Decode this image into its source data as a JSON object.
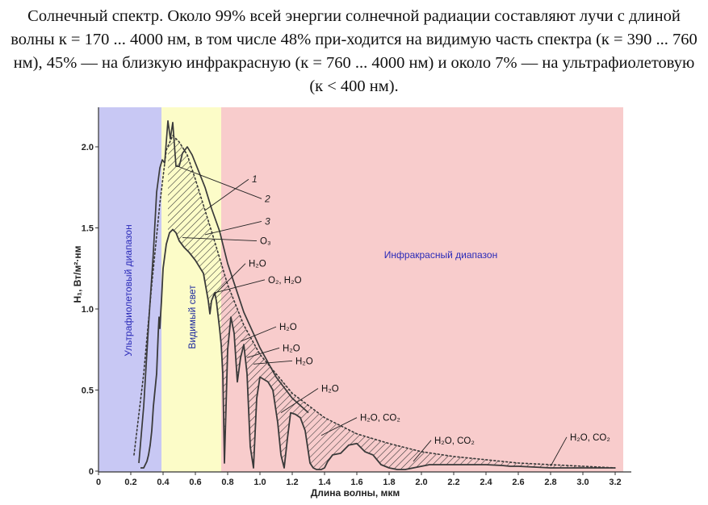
{
  "caption": "Солнечный спектр. Около 99% всей энергии солнечной радиации составляют лучи с длиной волны к = 170 ... 4000 нм, в том числе 48% при-ходится на видимую часть спектра (к = 390 ... 760 нм), 45% — на близкую инфракрасную (к = 760 ... 4000 нм) и около 7% — на ультрафиолетовую (к < 400 нм).",
  "colors": {
    "uv": "#c8c8f4",
    "visible": "#fcfcc8",
    "infrared": "#f8cccc",
    "uv_text": "#2a2ab8",
    "visible_text": "#1e2a9e",
    "ir_text": "#2a2ab8",
    "curve": "#3a3a3a"
  },
  "chart_data": {
    "type": "line",
    "xlabel": "Длина волны, мкм",
    "ylabel": "H₁, Вт/м²·нм",
    "xlim": [
      0,
      3.25
    ],
    "ylim": [
      0,
      2.2
    ],
    "xticks": [
      "0",
      "0.2",
      "0.4",
      "0.6",
      "0.8",
      "1.0",
      "1.2",
      "1.4",
      "1.6",
      "1.8",
      "2.0",
      "2.2",
      "2.4",
      "2.6",
      "2.8",
      "3.0",
      "3.2"
    ],
    "yticks": [
      {
        "value": 0,
        "label": "0"
      },
      {
        "value": 0.5,
        "label": "0.5"
      },
      {
        "value": 1.0,
        "label": "1.0"
      },
      {
        "value": 1.5,
        "label": "1.5"
      },
      {
        "value": 2.0,
        "label": "2.0"
      }
    ],
    "regions": [
      {
        "name": "Ультрафиолетовый диапазон",
        "from": 0,
        "to": 0.39,
        "color_key": "uv"
      },
      {
        "name": "Видимый свет",
        "from": 0.39,
        "to": 0.76,
        "color_key": "visible"
      },
      {
        "name": "Инфракрасный диапазон",
        "from": 0.76,
        "to": 3.25,
        "color_key": "infrared"
      }
    ],
    "series": [
      {
        "name": "1",
        "style": "dotted",
        "x": [
          0.22,
          0.28,
          0.33,
          0.38,
          0.42,
          0.46,
          0.5,
          0.55,
          0.6,
          0.7,
          0.8,
          0.9,
          1.0,
          1.2,
          1.4,
          1.6,
          1.8,
          2.0,
          2.2,
          2.4,
          2.6,
          2.8,
          3.0,
          3.2
        ],
        "y": [
          0.1,
          0.6,
          1.15,
          1.65,
          1.98,
          2.07,
          2.03,
          1.95,
          1.8,
          1.48,
          1.15,
          0.9,
          0.72,
          0.48,
          0.33,
          0.23,
          0.17,
          0.12,
          0.09,
          0.07,
          0.05,
          0.04,
          0.03,
          0.02
        ]
      },
      {
        "name": "2",
        "style": "solid",
        "x": [
          0.25,
          0.28,
          0.31,
          0.34,
          0.36,
          0.38,
          0.395,
          0.41,
          0.43,
          0.445,
          0.46,
          0.48,
          0.5,
          0.52,
          0.55,
          0.58,
          0.62,
          0.66,
          0.7,
          0.75,
          0.8,
          0.9,
          1.0,
          1.1,
          1.2,
          1.3
        ],
        "y": [
          0.05,
          0.4,
          0.9,
          1.35,
          1.72,
          1.87,
          1.92,
          1.9,
          2.16,
          2.05,
          2.15,
          1.88,
          1.88,
          1.96,
          2.0,
          1.95,
          1.85,
          1.75,
          1.62,
          1.48,
          1.28,
          0.98,
          0.76,
          0.58,
          0.45,
          0.36
        ]
      },
      {
        "name": "3",
        "style": "solid",
        "x": [
          0.26,
          0.28,
          0.3,
          0.31,
          0.32,
          0.33,
          0.34,
          0.36,
          0.37,
          0.375,
          0.38,
          0.39,
          0.4,
          0.42,
          0.44,
          0.46,
          0.48,
          0.5,
          0.53,
          0.56,
          0.6,
          0.65,
          0.68,
          0.69,
          0.7,
          0.72,
          0.73,
          0.75,
          0.76,
          0.77,
          0.78,
          0.8,
          0.82,
          0.84,
          0.86,
          0.88,
          0.9,
          0.92,
          0.94,
          0.96,
          0.98,
          1.0,
          1.05,
          1.08,
          1.11,
          1.13,
          1.15,
          1.17,
          1.19,
          1.22,
          1.25,
          1.28,
          1.31,
          1.33,
          1.35,
          1.38,
          1.4,
          1.42,
          1.45,
          1.5,
          1.55,
          1.6,
          1.65,
          1.7,
          1.75,
          1.8,
          1.85,
          1.9,
          1.95,
          2.0,
          2.05,
          2.1,
          2.2,
          2.3,
          2.4,
          2.5,
          2.55,
          2.6,
          2.7,
          2.8,
          2.9,
          3.0,
          3.1,
          3.2
        ],
        "y": [
          0.02,
          0.02,
          0.06,
          0.1,
          0.16,
          0.25,
          0.4,
          0.6,
          0.85,
          0.95,
          0.88,
          1.05,
          1.25,
          1.4,
          1.47,
          1.49,
          1.47,
          1.42,
          1.38,
          1.35,
          1.3,
          1.22,
          1.05,
          0.97,
          1.05,
          1.1,
          1.05,
          0.88,
          0.78,
          0.6,
          0.05,
          0.75,
          0.95,
          0.85,
          0.55,
          0.7,
          0.78,
          0.6,
          0.15,
          0.02,
          0.45,
          0.58,
          0.55,
          0.5,
          0.3,
          0.1,
          0.02,
          0.2,
          0.36,
          0.35,
          0.33,
          0.25,
          0.05,
          0.02,
          0.01,
          0.01,
          0.02,
          0.06,
          0.1,
          0.11,
          0.16,
          0.17,
          0.12,
          0.1,
          0.04,
          0.02,
          0.01,
          0.01,
          0.02,
          0.03,
          0.04,
          0.04,
          0.04,
          0.04,
          0.04,
          0.035,
          0.03,
          0.03,
          0.025,
          0.02,
          0.02,
          0.02,
          0.02,
          0.02
        ]
      }
    ],
    "annotations": [
      {
        "text": "1",
        "x": 0.95,
        "y": 1.78,
        "italic": true
      },
      {
        "text": "2",
        "x": 1.03,
        "y": 1.66,
        "italic": true
      },
      {
        "text": "3",
        "x": 1.03,
        "y": 1.52,
        "italic": true
      },
      {
        "text": "O₃",
        "x": 1.0,
        "y": 1.4
      },
      {
        "text": "H₂O",
        "x": 0.93,
        "y": 1.26
      },
      {
        "text": "O₂, H₂O",
        "x": 1.05,
        "y": 1.16
      },
      {
        "text": "H₂O",
        "x": 1.12,
        "y": 0.87
      },
      {
        "text": "H₂O",
        "x": 1.14,
        "y": 0.74
      },
      {
        "text": "H₂O",
        "x": 1.22,
        "y": 0.66
      },
      {
        "text": "H₂O",
        "x": 1.38,
        "y": 0.49
      },
      {
        "text": "H₂O, CO₂",
        "x": 1.62,
        "y": 0.31
      },
      {
        "text": "H₂O, CO₂",
        "x": 2.08,
        "y": 0.17
      },
      {
        "text": "H₂O, CO₂",
        "x": 2.92,
        "y": 0.19
      }
    ]
  }
}
